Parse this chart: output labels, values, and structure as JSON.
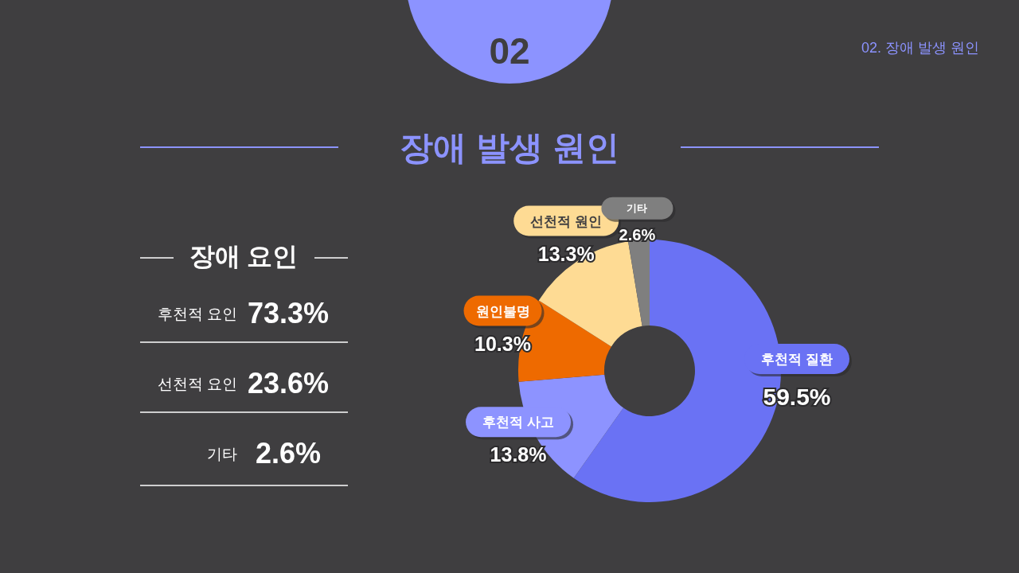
{
  "chart_data": [
    {
      "type": "other",
      "title": "장애 요인",
      "categories": [
        "후천적 요인",
        "선천적 요인",
        "기타"
      ],
      "values": [
        73.3,
        23.6,
        2.6
      ],
      "value_labels": [
        "73.3%",
        "23.6%",
        "2.6%"
      ]
    },
    {
      "type": "donut",
      "title": "장애 발생 원인",
      "annotations": [
        "02",
        "02. 장애 발생 원인"
      ],
      "categories": [
        "후천적 질환",
        "후천적 사고",
        "원인불명",
        "선천적 원인",
        "기타"
      ],
      "values": [
        59.5,
        13.8,
        10.3,
        13.3,
        2.6
      ],
      "colors": [
        "#6a72f4",
        "#8d93ff",
        "#ee6a00",
        "#fedb94",
        "#7f7f7f"
      ],
      "value_labels": [
        "59.5%",
        "13.8%",
        "10.3%",
        "13.3%",
        "2.6%"
      ]
    }
  ]
}
